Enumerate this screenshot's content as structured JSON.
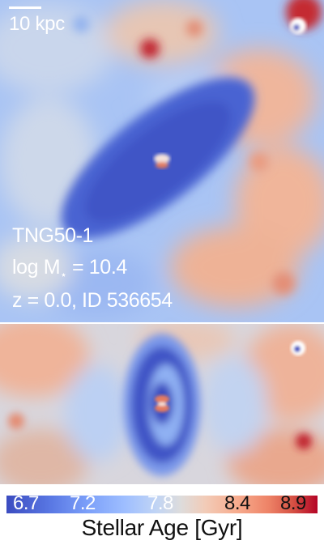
{
  "scale_bar": {
    "label": "10 kpc"
  },
  "galaxy_info": {
    "simulation": "TNG50-1",
    "mass_label_prefix": "log M",
    "mass_label_subscript": "⋆",
    "mass_label_value": " = 10.4",
    "redshift_id": "z = 0.0, ID 536654"
  },
  "colorbar": {
    "label": "Stellar Age [Gyr]",
    "ticks": [
      "6.7",
      "7.2",
      "7.8",
      "8.4",
      "8.9"
    ],
    "range": [
      6.5,
      9.0
    ],
    "colormap": "coolwarm"
  },
  "colors": {
    "young": "#3b4cc0",
    "mid": "#dddcdc",
    "old": "#b40426"
  }
}
